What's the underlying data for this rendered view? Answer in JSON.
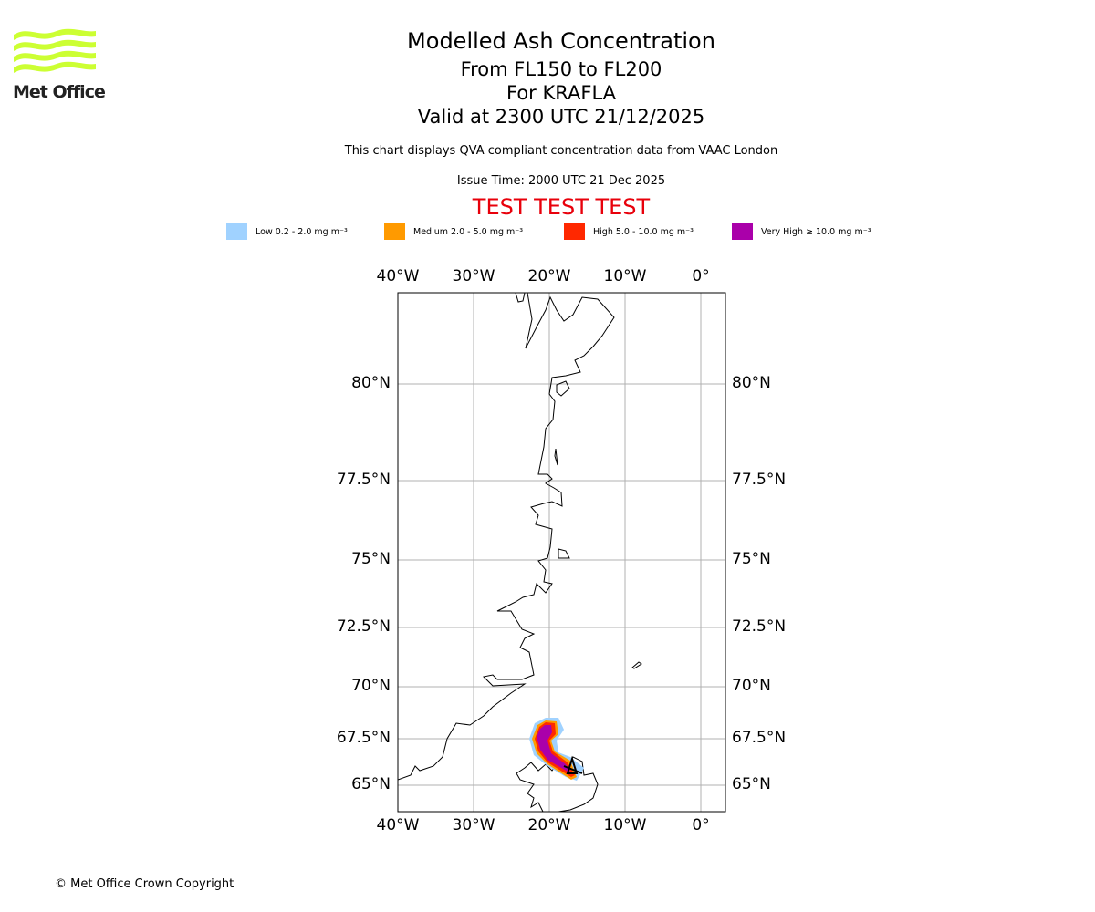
{
  "logo": {
    "text": "Met Office",
    "color": "#ccff33"
  },
  "title": {
    "main": "Modelled Ash Concentration",
    "levels": "From FL150 to FL200",
    "volcano": "For KRAFLA",
    "valid": "Valid at 2300 UTC 21/12/2025"
  },
  "subtitle": "This chart displays QVA compliant concentration data from VAAC London",
  "issue_time": "Issue Time: 2000 UTC 21 Dec 2025",
  "test_banner": "TEST TEST TEST",
  "legend": [
    {
      "label": "Low 0.2 - 2.0 mg m⁻³",
      "color": "#a0d2ff"
    },
    {
      "label": "Medium 2.0 - 5.0 mg m⁻³",
      "color": "#ff9a00"
    },
    {
      "label": "High 5.0 - 10.0 mg m⁻³",
      "color": "#ff2800"
    },
    {
      "label": "Very High ≥ 10.0 mg m⁻³",
      "color": "#aa00aa"
    }
  ],
  "map": {
    "lon_ticks": [
      "40°W",
      "30°W",
      "20°W",
      "10°W",
      "0°"
    ],
    "lat_ticks": [
      "80°N",
      "77.5°N",
      "75°N",
      "72.5°N",
      "70°N",
      "67.5°N",
      "65°N"
    ],
    "volcano_marker": "triangle"
  },
  "copyright": "© Met Office Crown Copyright"
}
